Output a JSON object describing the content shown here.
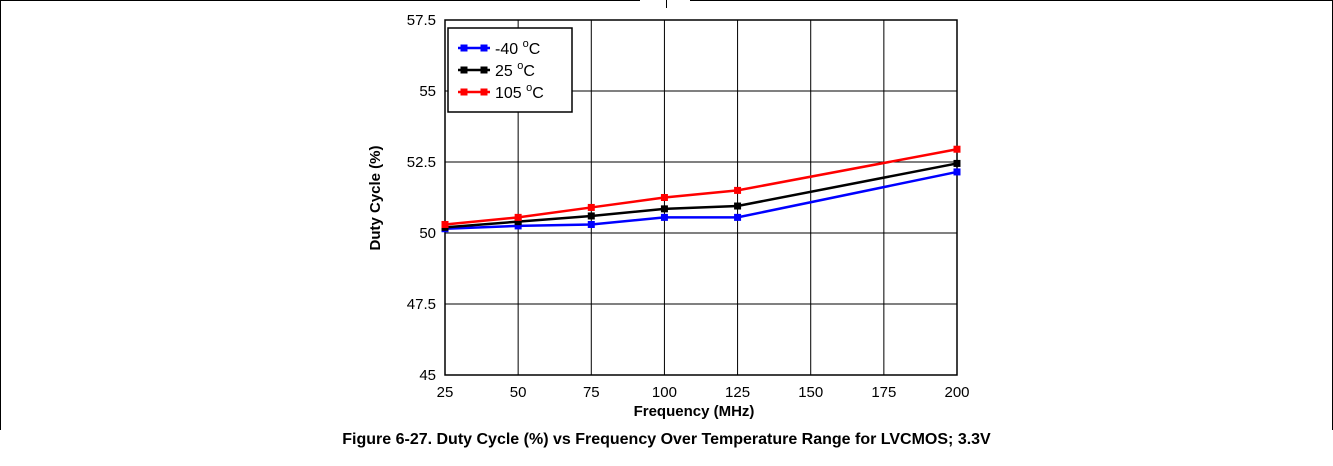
{
  "figure": {
    "caption": "Figure 6-27. Duty Cycle (%) vs Frequency Over Temperature Range for LVCMOS; 3.3V"
  },
  "chart_data": {
    "type": "line",
    "title": "",
    "xlabel": "Frequency (MHz)",
    "ylabel": "Duty Cycle (%)",
    "x": [
      25,
      50,
      75,
      100,
      125,
      200
    ],
    "x_ticks": [
      "25",
      "50",
      "75",
      "100",
      "125",
      "150",
      "175",
      "200"
    ],
    "y_ticks": [
      "45",
      "47.5",
      "50",
      "52.5",
      "55",
      "57.5"
    ],
    "ylim": [
      45,
      57.5
    ],
    "grid": true,
    "legend_position": "top-left",
    "series": [
      {
        "name": "-40 °C",
        "label_main": "-40 ",
        "label_sup": "o",
        "label_unit": "C",
        "color": "#0000ff",
        "values": [
          50.15,
          50.25,
          50.3,
          50.55,
          50.55,
          52.15
        ]
      },
      {
        "name": "25 °C",
        "label_main": "25 ",
        "label_sup": "o",
        "label_unit": "C",
        "color": "#000000",
        "values": [
          50.2,
          50.4,
          50.6,
          50.85,
          50.95,
          52.45
        ]
      },
      {
        "name": "105 °C",
        "label_main": "105 ",
        "label_sup": "o",
        "label_unit": "C",
        "color": "#ff0000",
        "values": [
          50.3,
          50.55,
          50.9,
          51.25,
          51.5,
          52.95
        ]
      }
    ]
  }
}
